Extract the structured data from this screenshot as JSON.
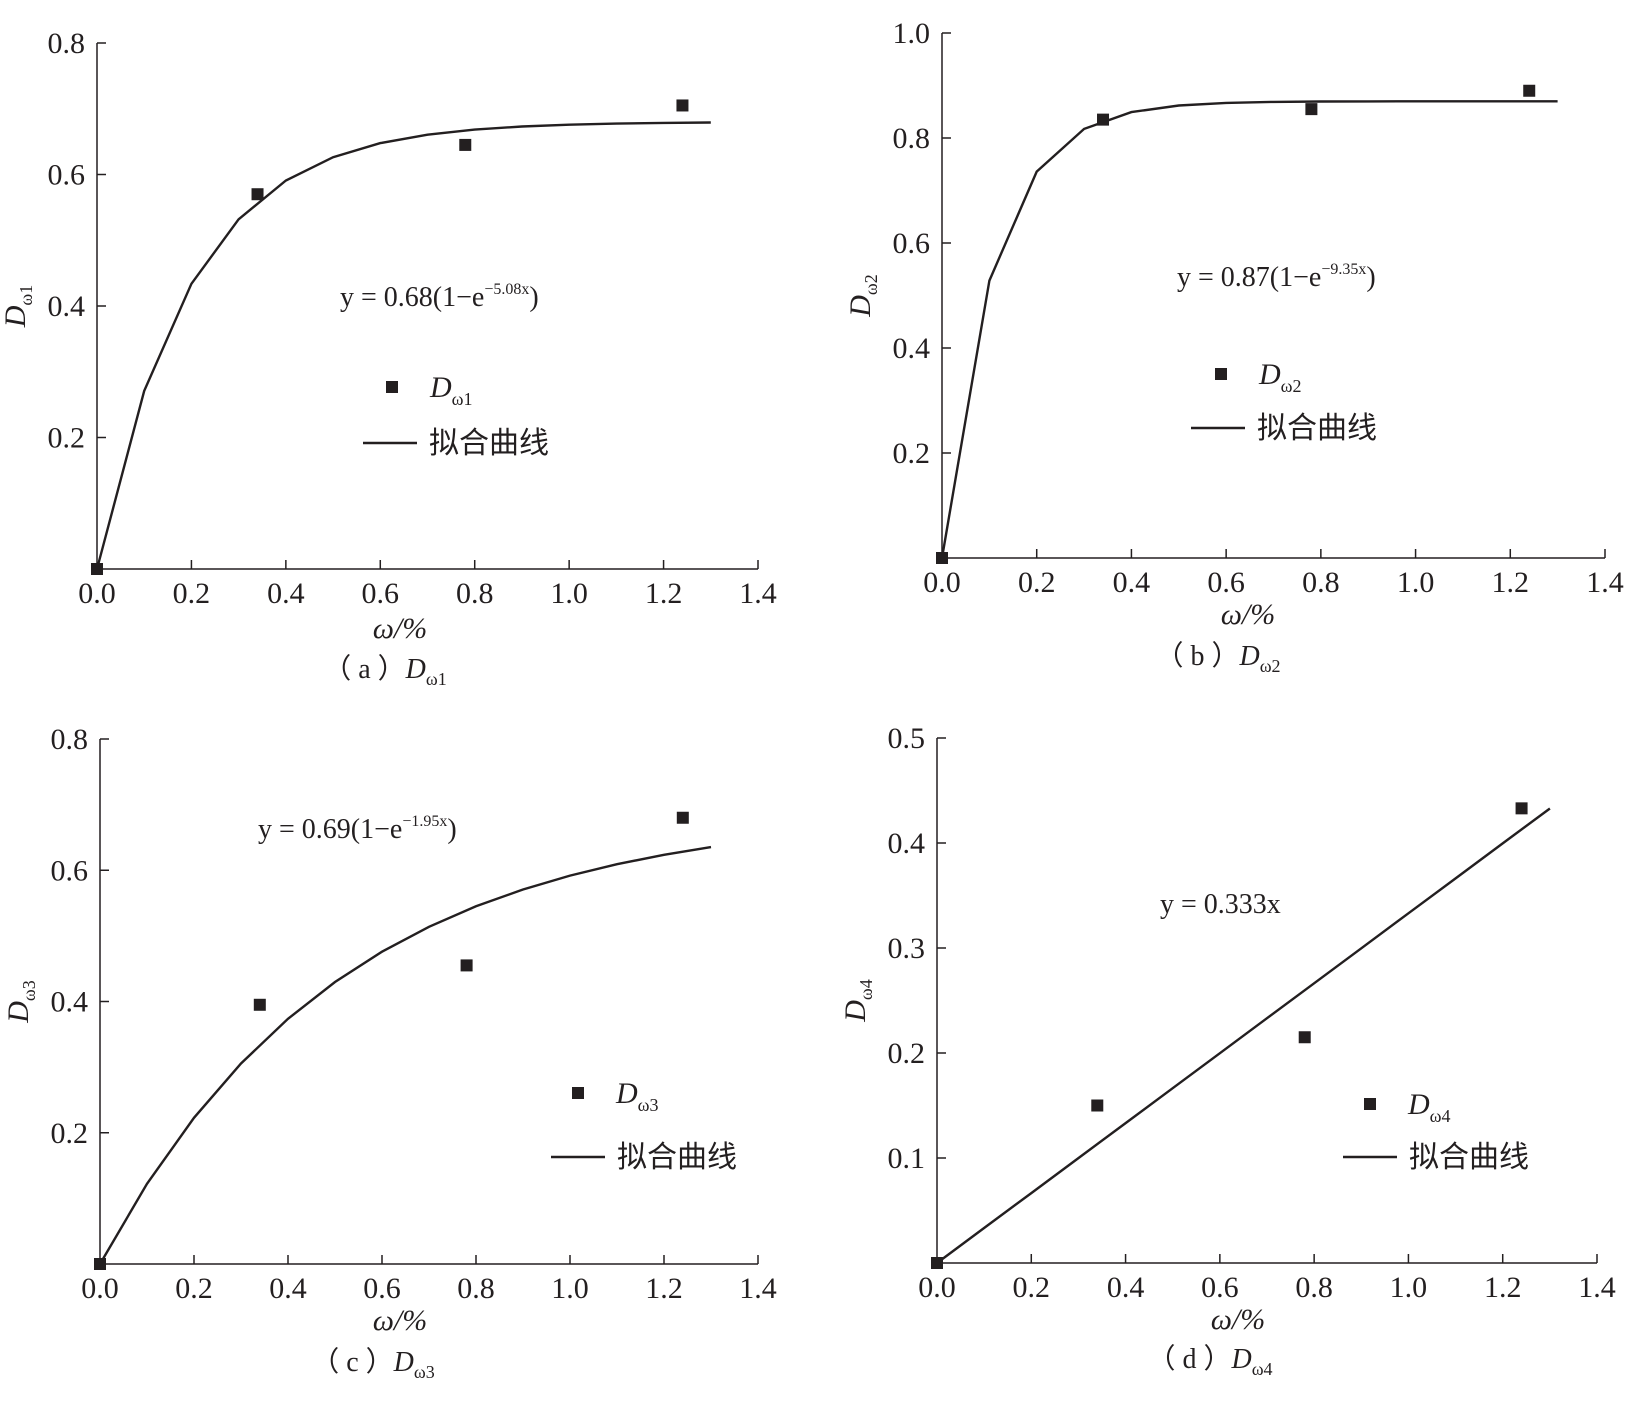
{
  "chart_data": [
    {
      "id": "a",
      "type": "scatter",
      "caption": "（ a ）",
      "caption_var": {
        "base": "D",
        "sub": "ω1"
      },
      "xlabel": "ω/%",
      "ylabel": {
        "base": "D",
        "sub": "ω1"
      },
      "xlim": [
        0,
        1.4
      ],
      "ylim": [
        0,
        0.8
      ],
      "xticks": [
        0.0,
        0.2,
        0.4,
        0.6,
        0.8,
        1.0,
        1.2,
        1.4
      ],
      "xtick_labels": [
        "0.0",
        "0.2",
        "0.4",
        "0.6",
        "0.8",
        "1.0",
        "1.2",
        "1.4"
      ],
      "yticks": [
        0.2,
        0.4,
        0.6,
        0.8
      ],
      "ytick_labels": [
        "0.2",
        "0.4",
        "0.6",
        "0.8"
      ],
      "series": [
        {
          "name": {
            "base": "D",
            "sub": "ω1"
          },
          "kind": "points",
          "x": [
            0,
            0.34,
            0.78,
            1.24
          ],
          "y": [
            0,
            0.57,
            0.645,
            0.705
          ]
        },
        {
          "name": "拟合曲线",
          "kind": "fit",
          "model": "exp",
          "a": 0.68,
          "b": 5.08,
          "x_range": [
            0,
            1.3
          ]
        }
      ],
      "equation": {
        "prefix": "y = 0.68(1−e",
        "exp": "−5.08x",
        "suffix": ")"
      },
      "color": "#231f20"
    },
    {
      "id": "b",
      "type": "scatter",
      "caption": "（ b ）",
      "caption_var": {
        "base": "D",
        "sub": "ω2"
      },
      "xlabel": "ω/%",
      "ylabel": {
        "base": "D",
        "sub": "ω2"
      },
      "xlim": [
        0,
        1.4
      ],
      "ylim": [
        0,
        1.0
      ],
      "xticks": [
        0.0,
        0.2,
        0.4,
        0.6,
        0.8,
        1.0,
        1.2,
        1.4
      ],
      "xtick_labels": [
        "0.0",
        "0.2",
        "0.4",
        "0.6",
        "0.8",
        "1.0",
        "1.2",
        "1.4"
      ],
      "yticks": [
        0.2,
        0.4,
        0.6,
        0.8,
        1.0
      ],
      "ytick_labels": [
        "0.2",
        "0.4",
        "0.6",
        "0.8",
        "1.0"
      ],
      "series": [
        {
          "name": {
            "base": "D",
            "sub": "ω2"
          },
          "kind": "points",
          "x": [
            0,
            0.34,
            0.78,
            1.24
          ],
          "y": [
            0,
            0.835,
            0.855,
            0.89
          ]
        },
        {
          "name": "拟合曲线",
          "kind": "fit",
          "model": "exp",
          "a": 0.87,
          "b": 9.35,
          "x_range": [
            0,
            1.3
          ]
        }
      ],
      "equation": {
        "prefix": "y = 0.87(1−e",
        "exp": "−9.35x",
        "suffix": ")"
      },
      "color": "#231f20"
    },
    {
      "id": "c",
      "type": "scatter",
      "caption": "（ c ）",
      "caption_var": {
        "base": "D",
        "sub": "ω3"
      },
      "xlabel": "ω/%",
      "ylabel": {
        "base": "D",
        "sub": "ω3"
      },
      "xlim": [
        0,
        1.4
      ],
      "ylim": [
        0,
        0.8
      ],
      "xticks": [
        0.0,
        0.2,
        0.4,
        0.6,
        0.8,
        1.0,
        1.2,
        1.4
      ],
      "xtick_labels": [
        "0.0",
        "0.2",
        "0.4",
        "0.6",
        "0.8",
        "1.0",
        "1.2",
        "1.4"
      ],
      "yticks": [
        0.2,
        0.4,
        0.6,
        0.8
      ],
      "ytick_labels": [
        "0.2",
        "0.4",
        "0.6",
        "0.8"
      ],
      "series": [
        {
          "name": {
            "base": "D",
            "sub": "ω3"
          },
          "kind": "points",
          "x": [
            0,
            0.34,
            0.78,
            1.24
          ],
          "y": [
            0,
            0.395,
            0.455,
            0.68
          ]
        },
        {
          "name": "拟合曲线",
          "kind": "fit",
          "model": "exp",
          "a": 0.69,
          "b": 1.95,
          "x_range": [
            0,
            1.3
          ]
        }
      ],
      "equation": {
        "prefix": "y = 0.69(1−e",
        "exp": "−1.95x",
        "suffix": ")"
      },
      "color": "#231f20"
    },
    {
      "id": "d",
      "type": "scatter",
      "caption": "（ d ）",
      "caption_var": {
        "base": "D",
        "sub": "ω4"
      },
      "xlabel": "ω/%",
      "ylabel": {
        "base": "D",
        "sub": "ω4"
      },
      "xlim": [
        0,
        1.4
      ],
      "ylim": [
        0,
        0.5
      ],
      "xticks": [
        0.0,
        0.2,
        0.4,
        0.6,
        0.8,
        1.0,
        1.2,
        1.4
      ],
      "xtick_labels": [
        "0.0",
        "0.2",
        "0.4",
        "0.6",
        "0.8",
        "1.0",
        "1.2",
        "1.4"
      ],
      "yticks": [
        0.1,
        0.2,
        0.3,
        0.4,
        0.5
      ],
      "ytick_labels": [
        "0.1",
        "0.2",
        "0.3",
        "0.4",
        "0.5"
      ],
      "series": [
        {
          "name": {
            "base": "D",
            "sub": "ω4"
          },
          "kind": "points",
          "x": [
            0,
            0.34,
            0.78,
            1.24
          ],
          "y": [
            0,
            0.15,
            0.215,
            0.433
          ]
        },
        {
          "name": "拟合曲线",
          "kind": "fit",
          "model": "linear",
          "k": 0.333,
          "x_range": [
            0,
            1.3
          ]
        }
      ],
      "equation": {
        "prefix": "y = 0.333x",
        "exp": "",
        "suffix": ""
      },
      "color": "#231f20"
    }
  ]
}
